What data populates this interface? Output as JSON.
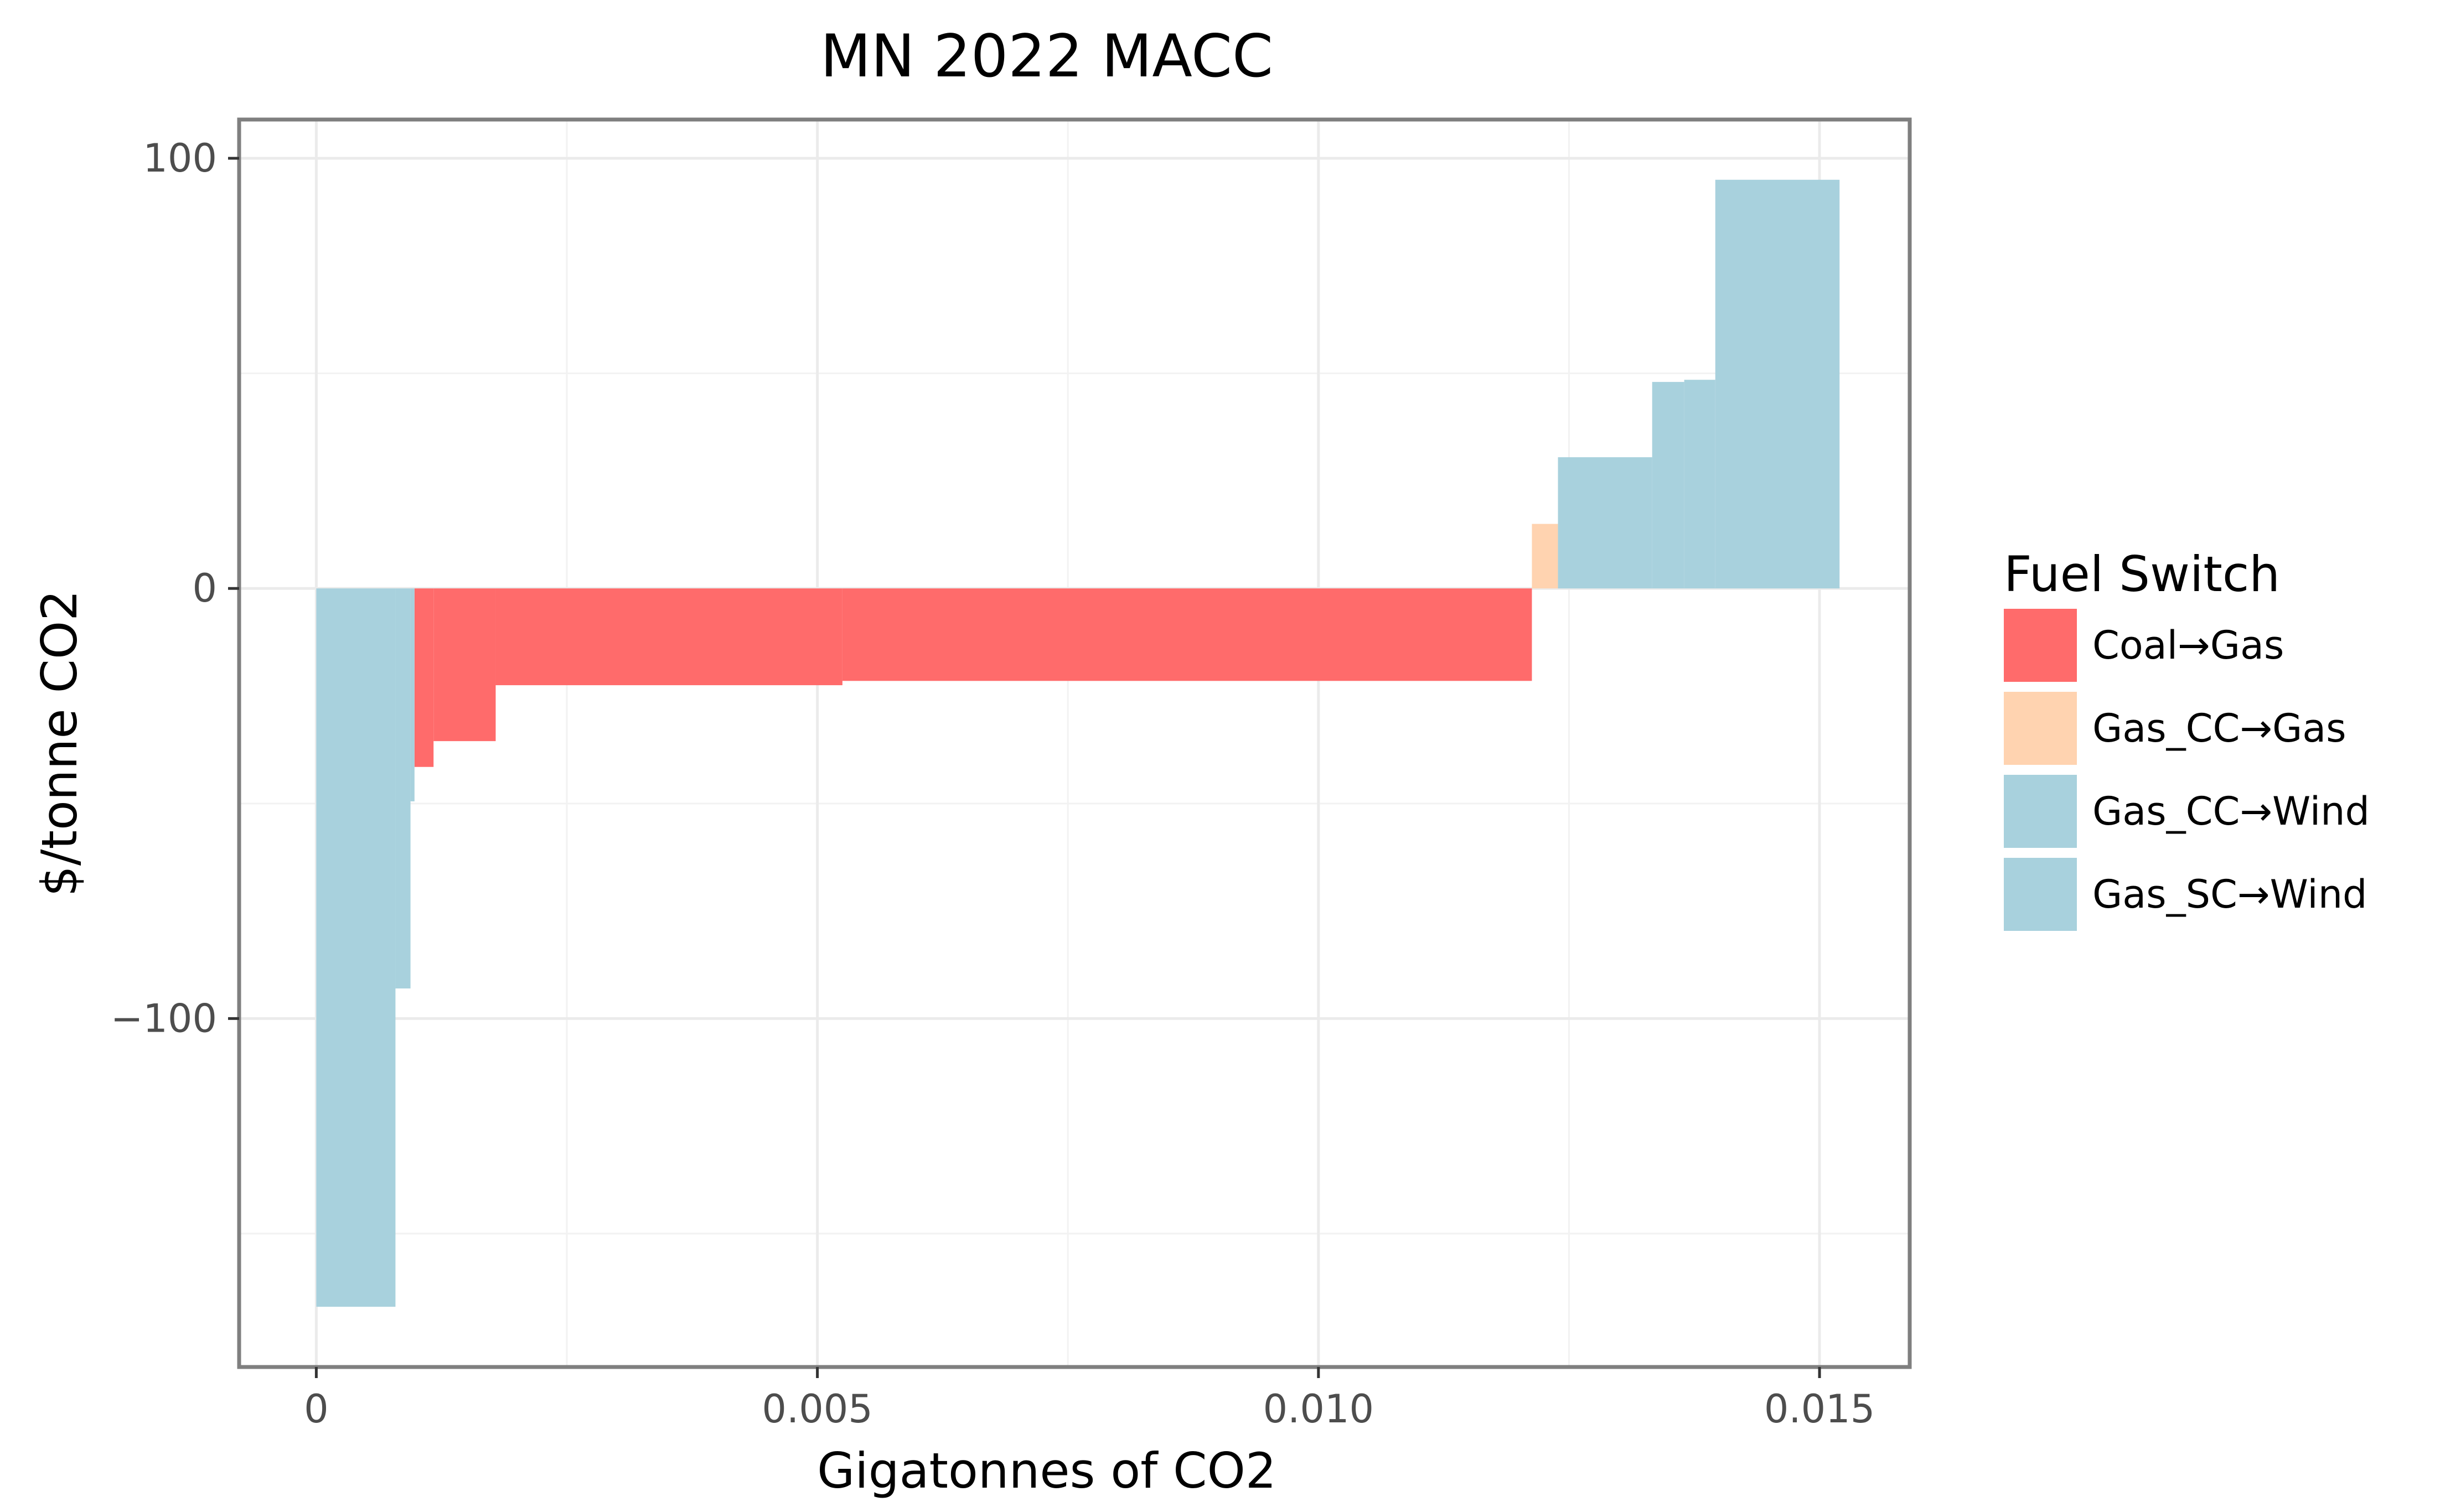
{
  "chart_data": {
    "type": "bar",
    "subtype": "marginal-abatement-cost-curve",
    "title": "MN 2022 MACC",
    "xlabel": "Gigatonnes of CO2",
    "ylabel": "$/tonne CO2",
    "xlim": [
      -0.00077,
      0.0159
    ],
    "ylim": [
      -181,
      109
    ],
    "x_ticks": [
      0,
      0.005,
      0.01,
      0.015
    ],
    "x_tick_labels": [
      "0",
      "0.005",
      "0.010",
      "0.015"
    ],
    "y_ticks": [
      -100,
      0,
      100
    ],
    "y_tick_labels": [
      "−100",
      "0",
      "100"
    ],
    "grid": true,
    "legend": {
      "title": "Fuel Switch",
      "position": "right",
      "entries": [
        {
          "name": "Coal→Gas",
          "color": "#FF6B6B"
        },
        {
          "name": "Gas_CC→Gas",
          "color": "#FFD3B0"
        },
        {
          "name": "Gas_CC→Wind",
          "color": "#A8D1DD"
        },
        {
          "name": "Gas_SC→Wind",
          "color": "#A8D1DD"
        }
      ]
    },
    "series": [
      {
        "name": "Coal→Gas",
        "color": "#FF6B6B",
        "segments": [
          {
            "x0": 0.00098,
            "x1": 0.00117,
            "y": -41.5
          },
          {
            "x0": 0.00117,
            "x1": 0.00179,
            "y": -35.5
          },
          {
            "x0": 0.00179,
            "x1": 0.00525,
            "y": -22.5
          },
          {
            "x0": 0.00525,
            "x1": 0.01213,
            "y": -21.5
          }
        ]
      },
      {
        "name": "Gas_CC→Gas",
        "color": "#FFD3B0",
        "segments": [
          {
            "x0": 0.01213,
            "x1": 0.01239,
            "y": 15
          }
        ]
      },
      {
        "name": "Gas_CC→Wind",
        "color": "#A8D1DD",
        "segments": [
          {
            "x0": 0.0,
            "x1": 0.00079,
            "y": -167
          },
          {
            "x0": 0.00079,
            "x1": 0.00094,
            "y": -93
          },
          {
            "x0": 0.00094,
            "x1": 0.00098,
            "y": -49.5
          }
        ]
      },
      {
        "name": "Gas_SC→Wind",
        "color": "#A8D1DD",
        "segments": [
          {
            "x0": 0.01239,
            "x1": 0.01333,
            "y": 30.5
          },
          {
            "x0": 0.01333,
            "x1": 0.01365,
            "y": 48
          },
          {
            "x0": 0.01365,
            "x1": 0.01396,
            "y": 48.5
          },
          {
            "x0": 0.01396,
            "x1": 0.0152,
            "y": 95
          }
        ]
      }
    ]
  }
}
